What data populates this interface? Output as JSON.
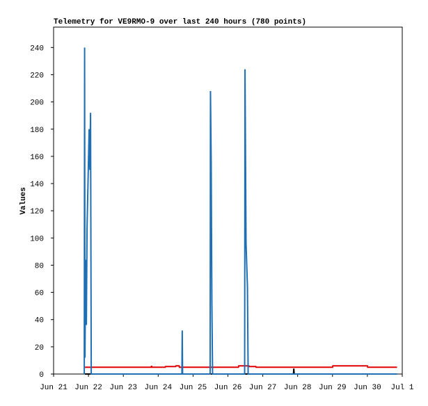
{
  "chart_data": {
    "type": "line",
    "title": "Telemetry for VE9RMO-9 over last 240 hours (780 points)",
    "y_label": "Values",
    "xlim": [
      0,
      10
    ],
    "xticks": [
      {
        "value": 0,
        "label": "Jun 21"
      },
      {
        "value": 1,
        "label": "Jun 22"
      },
      {
        "value": 2,
        "label": "Jun 23"
      },
      {
        "value": 3,
        "label": "Jun 24"
      },
      {
        "value": 4,
        "label": "Jun 25"
      },
      {
        "value": 5,
        "label": "Jun 26"
      },
      {
        "value": 6,
        "label": "Jun 27"
      },
      {
        "value": 7,
        "label": "Jun 28"
      },
      {
        "value": 8,
        "label": "Jun 29"
      },
      {
        "value": 9,
        "label": "Jun 30"
      },
      {
        "value": 10,
        "label": "Jul 1"
      }
    ],
    "ylim": [
      0,
      255
    ],
    "yticks": [
      0,
      20,
      40,
      60,
      80,
      100,
      120,
      140,
      160,
      180,
      200,
      220,
      240
    ],
    "series": [
      {
        "color": "#000000",
        "x": [
          0.9,
          6.88,
          6.89,
          6.9,
          9.85
        ],
        "values": [
          0,
          0,
          4,
          0,
          0
        ]
      },
      {
        "color": "#e00000",
        "x": [
          0.9,
          2.8,
          2.81,
          2.82,
          3.2,
          3.21,
          3.5,
          3.51,
          3.6,
          3.61,
          5.0,
          5.3,
          5.31,
          5.6,
          5.61,
          5.8,
          5.81,
          8.0,
          8.01,
          8.4,
          9.0,
          9.01,
          9.85
        ],
        "values": [
          5,
          5,
          6,
          5,
          5,
          5.5,
          5.5,
          6,
          6,
          5,
          5,
          5,
          6,
          6,
          5.5,
          5.5,
          5,
          5,
          6,
          6,
          6,
          5,
          5
        ]
      },
      {
        "color": "#1f6fb4",
        "x": [
          0.88,
          0.89,
          0.9,
          0.92,
          0.94,
          0.96,
          0.98,
          1.0,
          1.02,
          1.04,
          1.06,
          1.08,
          3.68,
          3.69,
          3.7,
          4.49,
          4.5,
          4.52,
          4.54,
          4.56,
          5.48,
          5.49,
          5.52,
          5.56,
          5.58,
          9.85
        ],
        "values": [
          0,
          240,
          12,
          84,
          36,
          108,
          132,
          156,
          180,
          150,
          192,
          0,
          0,
          32,
          0,
          0,
          208,
          156,
          52,
          0,
          0,
          224,
          96,
          64,
          0,
          0
        ]
      }
    ]
  }
}
